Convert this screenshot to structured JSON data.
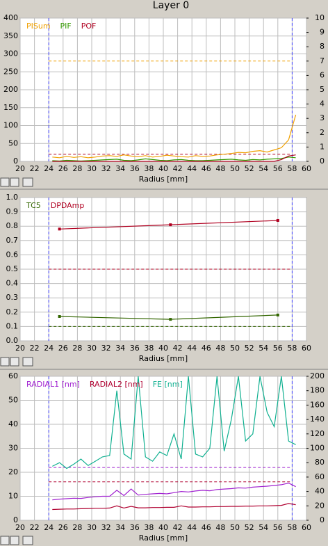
{
  "title": "Layer 0",
  "chart_data": [
    {
      "type": "line",
      "xlabel": "Radius [mm]",
      "x": [
        24.5,
        25.5,
        26.5,
        27.5,
        28.5,
        29.5,
        30.5,
        31.5,
        32.5,
        33.5,
        34.5,
        35.5,
        36.5,
        37.5,
        38.5,
        39.5,
        40.5,
        41.5,
        42.5,
        43.5,
        44.5,
        45.5,
        46.5,
        47.5,
        48.5,
        49.5,
        50.5,
        51.5,
        52.5,
        53.5,
        54.5,
        55.5,
        56.5,
        57.5,
        58.5
      ],
      "series": [
        {
          "name": "PISum",
          "color": "#f0a000",
          "values": [
            12,
            10,
            14,
            11,
            13,
            10,
            12,
            15,
            16,
            14,
            18,
            15,
            13,
            16,
            12,
            14,
            17,
            15,
            13,
            12,
            16,
            14,
            15,
            18,
            20,
            22,
            25,
            24,
            28,
            30,
            26,
            32,
            38,
            60,
            130
          ]
        },
        {
          "name": "PIF",
          "color": "#339900",
          "values": [
            2,
            1,
            3,
            2,
            1,
            2,
            3,
            4,
            5,
            6,
            3,
            2,
            4,
            7,
            5,
            3,
            2,
            4,
            5,
            3,
            2,
            2,
            3,
            4,
            5,
            6,
            4,
            3,
            5,
            4,
            6,
            7,
            8,
            12,
            10
          ]
        },
        {
          "name": "POF",
          "color": "#b00020",
          "values": [
            0,
            0,
            0,
            0,
            0,
            0,
            0,
            0,
            0,
            0,
            0,
            0,
            0,
            0,
            0,
            0,
            0,
            0,
            0,
            0,
            0,
            0,
            0,
            0,
            0,
            0,
            0,
            0,
            0,
            0,
            0,
            0,
            5,
            15,
            18
          ]
        }
      ],
      "hlines": [
        {
          "value": 280,
          "color": "#f0a000"
        },
        {
          "value": 20,
          "color": "#b00020"
        }
      ],
      "vlines": [
        24,
        58
      ],
      "vline_color": "#4040ff",
      "xlim": [
        20,
        60
      ],
      "xticks": [
        20,
        22,
        24,
        26,
        28,
        30,
        32,
        34,
        36,
        38,
        40,
        42,
        44,
        46,
        48,
        50,
        52,
        54,
        56,
        58,
        60
      ],
      "ylim": [
        0,
        400
      ],
      "yticks": [
        0,
        50,
        100,
        150,
        200,
        250,
        300,
        350,
        400
      ],
      "y2lim": [
        0,
        10
      ],
      "y2ticks": [
        0,
        1,
        2,
        3,
        4,
        5,
        6,
        7,
        8,
        9,
        10
      ],
      "grid": true
    },
    {
      "type": "line",
      "xlabel": "Radius [mm]",
      "x": [
        25.5,
        41,
        56
      ],
      "series": [
        {
          "name": "TC5",
          "color": "#336600",
          "values": [
            0.17,
            0.15,
            0.18
          ]
        },
        {
          "name": "DPDAmp",
          "color": "#b00020",
          "values": [
            0.78,
            0.81,
            0.84
          ]
        }
      ],
      "hlines": [
        {
          "value": 0.5,
          "color": "#b00020"
        },
        {
          "value": 0.1,
          "color": "#336600"
        }
      ],
      "vlines": [
        24,
        58
      ],
      "vline_color": "#4040ff",
      "markers": true,
      "xlim": [
        20,
        60
      ],
      "xticks": [
        20,
        22,
        24,
        26,
        28,
        30,
        32,
        34,
        36,
        38,
        40,
        42,
        44,
        46,
        48,
        50,
        52,
        54,
        56,
        58,
        60
      ],
      "ylim": [
        0,
        1
      ],
      "yticks": [
        {
          "value": 0,
          "label": "0.0"
        },
        0.1,
        0.2,
        0.3,
        0.4,
        0.5,
        0.6,
        0.7,
        0.8,
        0.9,
        {
          "value": 1,
          "label": "1.0"
        }
      ],
      "grid": true
    },
    {
      "type": "line",
      "xlabel": "Radius [mm]",
      "x": [
        24.5,
        25.5,
        26.5,
        27.5,
        28.5,
        29.5,
        30.5,
        31.5,
        32.5,
        33.5,
        34.5,
        35.5,
        36.5,
        37.5,
        38.5,
        39.5,
        40.5,
        41.5,
        42.5,
        43.5,
        44.5,
        45.5,
        46.5,
        47.5,
        48.5,
        49.5,
        50.5,
        51.5,
        52.5,
        53.5,
        54.5,
        55.5,
        56.5,
        57.5,
        58.5
      ],
      "series": [
        {
          "name": "RADIAL1 [nm]",
          "color": "#a020d0",
          "values": [
            8.5,
            8.8,
            9,
            9.2,
            9.1,
            9.5,
            9.8,
            10,
            10,
            12.5,
            10.3,
            13,
            10.5,
            10.8,
            11,
            11.2,
            11,
            11.5,
            12,
            11.8,
            12.2,
            12.5,
            12.3,
            12.8,
            13,
            13.2,
            13.5,
            13.4,
            13.8,
            14,
            14.2,
            14.5,
            14.8,
            15.5,
            14
          ]
        },
        {
          "name": "RADIAL2 [nm]",
          "color": "#b00030",
          "values": [
            4.5,
            4.6,
            4.7,
            4.7,
            4.8,
            4.9,
            5,
            5,
            5.1,
            6,
            5.1,
            5.8,
            5.2,
            5.2,
            5.3,
            5.3,
            5.4,
            5.4,
            6,
            5.5,
            5.5,
            5.6,
            5.6,
            5.7,
            5.7,
            5.8,
            5.8,
            5.9,
            5.9,
            6,
            6,
            6.1,
            6.2,
            7,
            6.5
          ]
        },
        {
          "name": "FE [nm]",
          "color": "#10b090",
          "axis": "y2",
          "values": [
            75,
            80,
            72,
            78,
            85,
            76,
            82,
            88,
            90,
            180,
            92,
            85,
            200,
            88,
            82,
            95,
            90,
            120,
            85,
            200,
            92,
            88,
            100,
            200,
            96,
            140,
            200,
            110,
            120,
            200,
            150,
            130,
            200,
            110,
            105
          ]
        }
      ],
      "hlines": [
        {
          "value": 22,
          "color": "#a020d0"
        },
        {
          "value": 16,
          "color": "#b00030"
        }
      ],
      "vlines": [
        24,
        58
      ],
      "vline_color": "#4040ff",
      "xlim": [
        20,
        60
      ],
      "xticks": [
        20,
        22,
        24,
        26,
        28,
        30,
        32,
        34,
        36,
        38,
        40,
        42,
        44,
        46,
        48,
        50,
        52,
        54,
        56,
        58,
        60
      ],
      "ylim": [
        0,
        60
      ],
      "yticks": [
        0,
        10,
        20,
        30,
        40,
        50,
        60
      ],
      "y2lim": [
        0,
        200
      ],
      "y2ticks": [
        0,
        20,
        40,
        60,
        80,
        100,
        120,
        140,
        160,
        180,
        200
      ],
      "grid": true
    }
  ]
}
